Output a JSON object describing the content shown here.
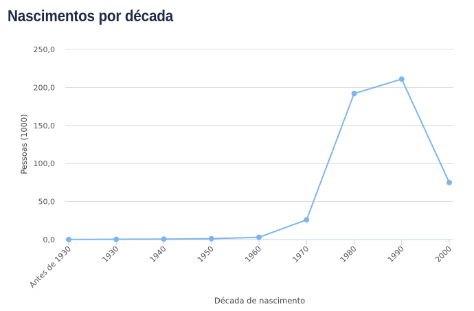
{
  "title": "Nascimentos por década",
  "chart_data": {
    "type": "line",
    "title": "Nascimentos por década",
    "xlabel": "Década de nascimento",
    "ylabel": "Pessoas (1000)",
    "categories": [
      "Antes de 1930",
      "1930",
      "1940",
      "1950",
      "1960",
      "1970",
      "1980",
      "1990",
      "2000"
    ],
    "series": [
      {
        "values": [
          0.2,
          0.4,
          0.7,
          1.2,
          3.0,
          26.0,
          192.0,
          211.0,
          75.0
        ]
      }
    ],
    "ylim": [
      0,
      250
    ],
    "yticks": [
      0,
      50,
      100,
      150,
      200,
      250
    ],
    "ytick_labels": [
      "0,0",
      "50,0",
      "100,0",
      "150,0",
      "200,0",
      "250,0"
    ],
    "grid": true,
    "color": "#7cb5ec"
  }
}
